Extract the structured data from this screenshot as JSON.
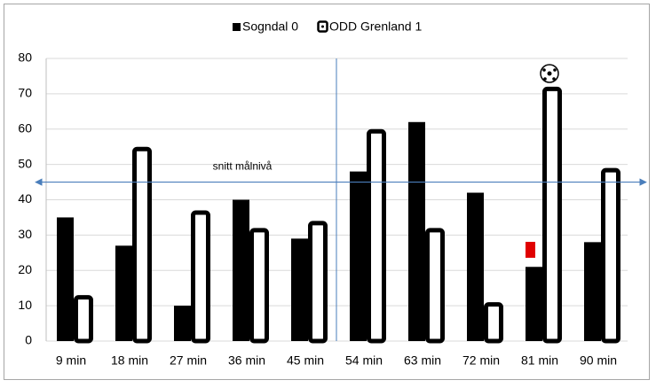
{
  "chart_data": {
    "type": "bar",
    "categories": [
      "9 min",
      "18 min",
      "27 min",
      "36 min",
      "45 min",
      "54 min",
      "63 min",
      "72 min",
      "81 min",
      "90 min"
    ],
    "series": [
      {
        "name": "Sogndal 0",
        "color": "#000000",
        "values": [
          35,
          27,
          10,
          40,
          29,
          48,
          62,
          42,
          21,
          28
        ]
      },
      {
        "name": "ODD Grenland 1",
        "color": "#000000",
        "values": [
          13,
          55,
          37,
          32,
          34,
          60,
          32,
          11,
          72,
          49
        ]
      }
    ],
    "annotation": "snitt målnivå",
    "average_line": 45,
    "ylim": [
      0,
      80
    ],
    "yticks": [
      0,
      10,
      20,
      30,
      40,
      50,
      60,
      70,
      80
    ],
    "grid": true,
    "legend": "top"
  }
}
